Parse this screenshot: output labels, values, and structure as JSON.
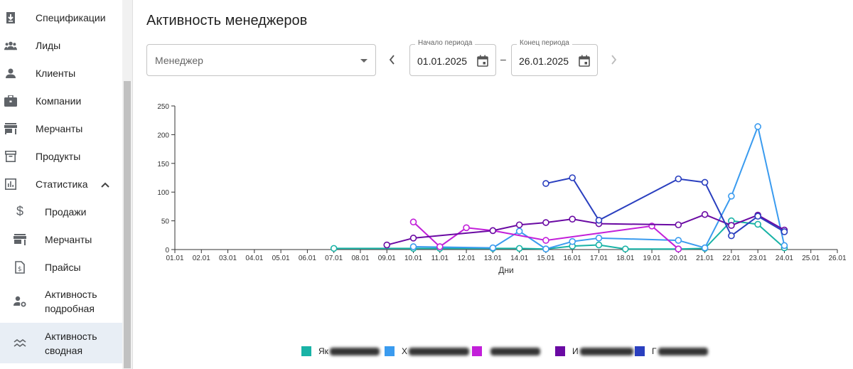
{
  "sidebar": {
    "items": [
      {
        "label": "Спецификации",
        "icon": "download-document-icon"
      },
      {
        "label": "Лиды",
        "icon": "people-group-icon"
      },
      {
        "label": "Клиенты",
        "icon": "person-icon"
      },
      {
        "label": "Компании",
        "icon": "briefcase-icon"
      },
      {
        "label": "Мерчанты",
        "icon": "store-icon"
      },
      {
        "label": "Продукты",
        "icon": "archive-box-icon"
      },
      {
        "label": "Статистика",
        "icon": "bar-chart-icon"
      }
    ],
    "stats_children": [
      {
        "label": "Продажи",
        "icon": "dollar-icon"
      },
      {
        "label": "Мерчанты",
        "icon": "store-icon"
      },
      {
        "label": "Прайсы",
        "icon": "price-document-icon"
      },
      {
        "label": "Активность подробная",
        "icon": "person-gear-icon"
      },
      {
        "label": "Активность сводная",
        "icon": "wave-lines-icon"
      }
    ]
  },
  "page": {
    "title": "Активность менеджеров"
  },
  "filters": {
    "manager_placeholder": "Менеджер",
    "start_label": "Начало периода",
    "start_value": "01.01.2025",
    "end_label": "Конец периода",
    "end_value": "26.01.2025",
    "dash": "–"
  },
  "chart_data": {
    "type": "line",
    "xlabel": "Дни",
    "ylabel": "",
    "ylim": [
      0,
      250
    ],
    "yticks": [
      0,
      50,
      100,
      150,
      200,
      250
    ],
    "categories": [
      "01.01",
      "02.01",
      "03.01",
      "04.01",
      "05.01",
      "06.01",
      "07.01",
      "08.01",
      "09.01",
      "10.01",
      "11.01",
      "12.01",
      "13.01",
      "14.01",
      "15.01",
      "16.01",
      "17.01",
      "18.01",
      "19.01",
      "20.01",
      "21.01",
      "22.01",
      "23.01",
      "24.01",
      "25.01",
      "26.01"
    ],
    "series": [
      {
        "name": "Як",
        "color": "#19b3a6",
        "points": [
          [
            "07.01",
            2
          ],
          [
            "10.01",
            2
          ],
          [
            "11.01",
            2
          ],
          [
            "13.01",
            2
          ],
          [
            "14.01",
            2
          ],
          [
            "15.01",
            1
          ],
          [
            "16.01",
            6
          ],
          [
            "17.01",
            8
          ],
          [
            "18.01",
            1
          ],
          [
            "20.01",
            1
          ],
          [
            "21.01",
            2
          ],
          [
            "22.01",
            50
          ],
          [
            "23.01",
            44
          ],
          [
            "24.01",
            3
          ]
        ]
      },
      {
        "name": "Х",
        "color": "#3a9bef",
        "points": [
          [
            "10.01",
            5
          ],
          [
            "13.01",
            3
          ],
          [
            "14.01",
            32
          ],
          [
            "15.01",
            1
          ],
          [
            "16.01",
            14
          ],
          [
            "17.01",
            20
          ],
          [
            "20.01",
            16
          ],
          [
            "21.01",
            3
          ],
          [
            "22.01",
            93
          ],
          [
            "23.01",
            214
          ],
          [
            "24.01",
            7
          ]
        ]
      },
      {
        "name": "",
        "color": "#c21fd9",
        "points": [
          [
            "10.01",
            48
          ],
          [
            "11.01",
            5
          ],
          [
            "12.01",
            38
          ],
          [
            "13.01",
            33
          ],
          [
            "15.01",
            16
          ],
          [
            "19.01",
            41
          ],
          [
            "20.01",
            1
          ]
        ]
      },
      {
        "name": "И",
        "color": "#6a0aa3",
        "points": [
          [
            "09.01",
            8
          ],
          [
            "10.01",
            20
          ],
          [
            "13.01",
            33
          ],
          [
            "14.01",
            43
          ],
          [
            "15.01",
            47
          ],
          [
            "16.01",
            53
          ],
          [
            "17.01",
            45
          ],
          [
            "20.01",
            43
          ],
          [
            "21.01",
            61
          ],
          [
            "22.01",
            42
          ],
          [
            "23.01",
            60
          ],
          [
            "24.01",
            34
          ]
        ]
      },
      {
        "name": "Г",
        "color": "#2a3fbf",
        "points": [
          [
            "15.01",
            115
          ],
          [
            "16.01",
            125
          ],
          [
            "17.01",
            51
          ],
          [
            "20.01",
            123
          ],
          [
            "21.01",
            117
          ],
          [
            "22.01",
            24
          ],
          [
            "23.01",
            58
          ],
          [
            "24.01",
            31
          ]
        ]
      }
    ],
    "legend_position": "bottom"
  }
}
